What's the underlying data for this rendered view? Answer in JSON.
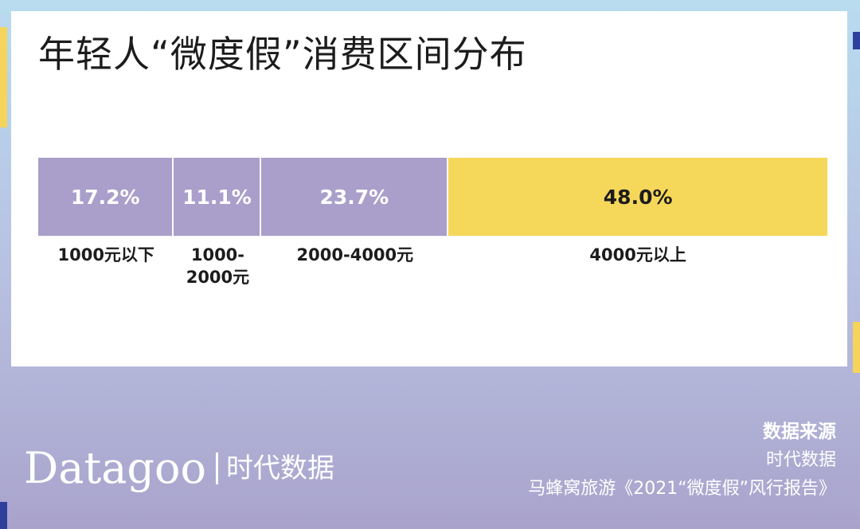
{
  "page": {
    "title": "年轻人“微度假”消费区间分布",
    "colors": {
      "bar_default": "#a99fca",
      "bar_highlight": "#f5d75a",
      "text_on_default": "#ffffff",
      "text_on_highlight": "#1c1c1c",
      "stripe_yellow": "#f4d45a",
      "stripe_blue": "#2e3f9c"
    }
  },
  "chart_data": {
    "type": "bar",
    "orientation": "stacked-horizontal",
    "categories": [
      "1000元以下",
      "1000-2000元",
      "2000-4000元",
      "4000元以上"
    ],
    "category_labels": [
      [
        "1000元以下"
      ],
      [
        "1000-",
        "2000元"
      ],
      [
        "2000-4000元"
      ],
      [
        "4000元以上"
      ]
    ],
    "values": [
      17.2,
      11.1,
      23.7,
      48.0
    ],
    "value_labels": [
      "17.2%",
      "11.1%",
      "23.7%",
      "48.0%"
    ],
    "highlight_index": 3,
    "unit": "%",
    "title": "年轻人“微度假”消费区间分布",
    "legend": "none",
    "grid": false
  },
  "footer": {
    "logo_latin": "Datagoo",
    "logo_cn": "时代数据",
    "source_heading": "数据来源",
    "source_line1": "时代数据",
    "source_line2": "马蜂窝旅游《2021“微度假”风行报告》"
  }
}
